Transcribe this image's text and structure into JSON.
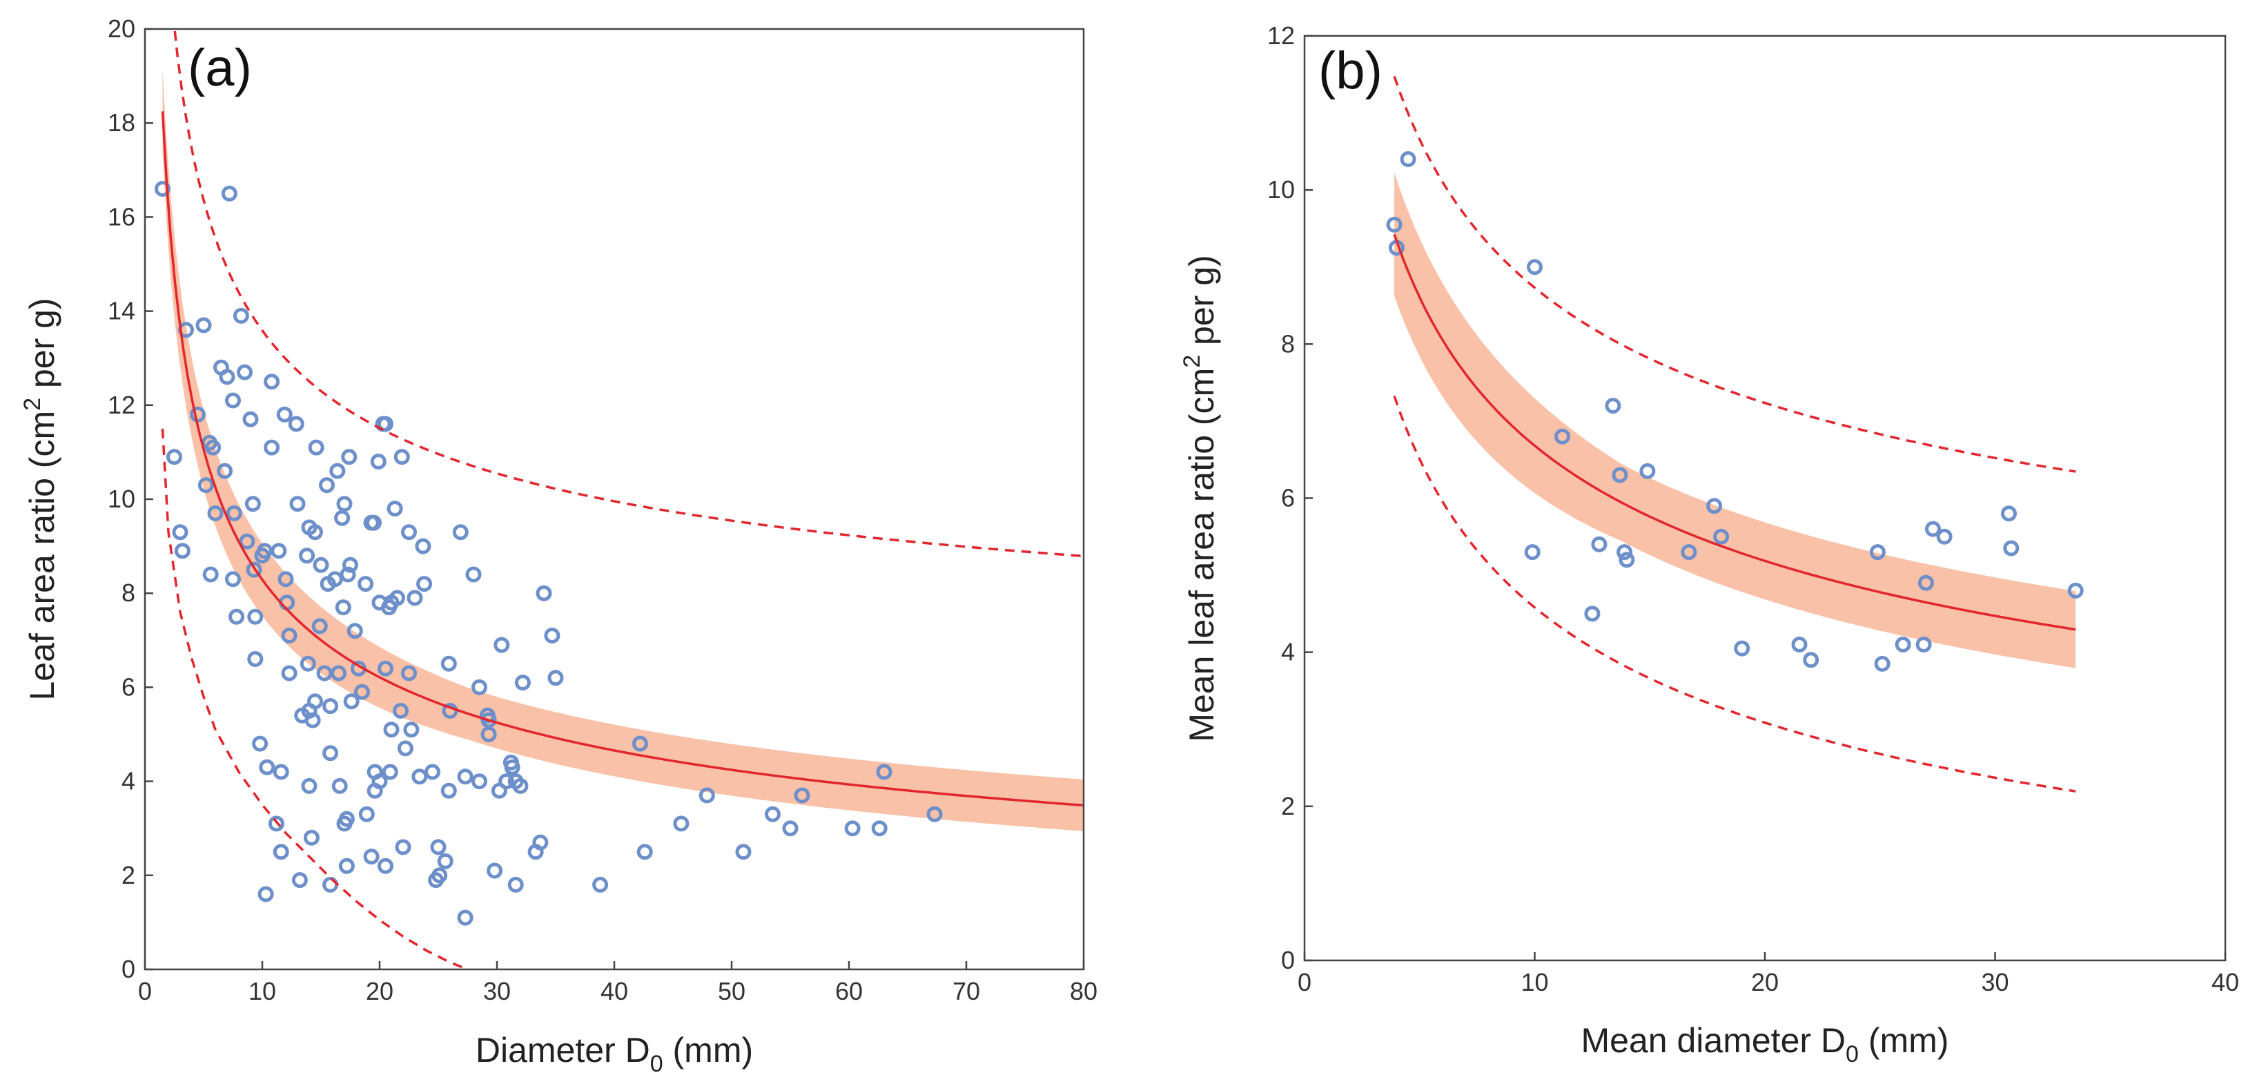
{
  "chart_data": [
    {
      "type": "scatter",
      "panel_label": "(a)",
      "xlabel": "Diameter D",
      "xlabel_sub": "0",
      "xlabel_unit": " (mm)",
      "ylabel": "Leaf area ratio (cm",
      "ylabel_sup": "2",
      "ylabel_unit": " per g)",
      "xlim": [
        0,
        80
      ],
      "ylim": [
        0,
        20
      ],
      "xticks": [
        "0",
        "10",
        "20",
        "30",
        "40",
        "50",
        "60",
        "70",
        "80"
      ],
      "yticks": [
        "0",
        "2",
        "4",
        "6",
        "8",
        "10",
        "12",
        "14",
        "16",
        "18",
        "20"
      ],
      "fit": {
        "model": "y = a * x^b",
        "a": 21.6,
        "b": -0.416,
        "x_start": 1.5,
        "ci_halfwidth": 0.55
      },
      "prediction_interval": {
        "upper": {
          "offset": 5.3,
          "x_start": 2.4,
          "x_end": 80
        },
        "lower": {
          "x": [
            1.5,
            2,
            3,
            4,
            5,
            6,
            8,
            10,
            12,
            14,
            16,
            18,
            20,
            22,
            24,
            26,
            27.5
          ],
          "y": [
            11.5,
            9.3,
            7.6,
            6.6,
            5.8,
            5.1,
            4.2,
            3.5,
            2.9,
            2.4,
            1.9,
            1.45,
            1.05,
            0.7,
            0.4,
            0.15,
            0
          ]
        }
      },
      "points": [
        [
          1.5,
          16.6
        ],
        [
          2.5,
          10.9
        ],
        [
          3,
          9.3
        ],
        [
          3.2,
          8.9
        ],
        [
          3.5,
          13.6
        ],
        [
          4.5,
          11.8
        ],
        [
          5,
          13.7
        ],
        [
          5.2,
          10.3
        ],
        [
          5.5,
          11.2
        ],
        [
          5.8,
          11.1
        ],
        [
          5.6,
          8.4
        ],
        [
          6,
          9.7
        ],
        [
          6.5,
          12.8
        ],
        [
          6.8,
          10.6
        ],
        [
          7,
          12.6
        ],
        [
          7.2,
          16.5
        ],
        [
          7.5,
          12.1
        ],
        [
          7.5,
          8.3
        ],
        [
          7.6,
          9.7
        ],
        [
          7.8,
          7.5
        ],
        [
          8.2,
          13.9
        ],
        [
          8.5,
          12.7
        ],
        [
          8.7,
          9.1
        ],
        [
          9,
          11.7
        ],
        [
          9.2,
          9.9
        ],
        [
          9.3,
          8.5
        ],
        [
          9.4,
          7.5
        ],
        [
          9.4,
          6.6
        ],
        [
          9.8,
          4.8
        ],
        [
          10,
          8.8
        ],
        [
          10.2,
          8.9
        ],
        [
          10.4,
          4.3
        ],
        [
          10.3,
          1.6
        ],
        [
          10.8,
          12.5
        ],
        [
          10.8,
          11.1
        ],
        [
          11.2,
          3.1
        ],
        [
          11.4,
          8.9
        ],
        [
          11.6,
          4.2
        ],
        [
          11.6,
          2.5
        ],
        [
          11.9,
          11.8
        ],
        [
          12,
          8.3
        ],
        [
          12.1,
          7.8
        ],
        [
          12.3,
          6.3
        ],
        [
          12.3,
          7.1
        ],
        [
          12.9,
          11.6
        ],
        [
          13,
          9.9
        ],
        [
          13.2,
          1.9
        ],
        [
          13.4,
          5.4
        ],
        [
          13.8,
          8.8
        ],
        [
          13.9,
          6.5
        ],
        [
          14,
          3.9
        ],
        [
          14,
          5.5
        ],
        [
          14,
          9.4
        ],
        [
          14.2,
          2.8
        ],
        [
          14.3,
          5.3
        ],
        [
          14.5,
          9.3
        ],
        [
          14.5,
          5.7
        ],
        [
          14.6,
          11.1
        ],
        [
          14.9,
          7.3
        ],
        [
          15,
          8.6
        ],
        [
          15.3,
          6.3
        ],
        [
          15.5,
          10.3
        ],
        [
          15.6,
          8.2
        ],
        [
          15.8,
          5.6
        ],
        [
          15.8,
          4.6
        ],
        [
          15.8,
          1.8
        ],
        [
          16.2,
          8.3
        ],
        [
          16.4,
          10.6
        ],
        [
          16.5,
          6.3
        ],
        [
          16.6,
          3.9
        ],
        [
          16.8,
          9.6
        ],
        [
          16.9,
          7.7
        ],
        [
          17,
          3.1
        ],
        [
          17,
          9.9
        ],
        [
          17.2,
          2.2
        ],
        [
          17.2,
          3.2
        ],
        [
          17.3,
          8.4
        ],
        [
          17.4,
          10.9
        ],
        [
          17.5,
          8.6
        ],
        [
          17.6,
          5.7
        ],
        [
          17.9,
          7.2
        ],
        [
          18.2,
          6.4
        ],
        [
          18.5,
          5.9
        ],
        [
          18.8,
          8.2
        ],
        [
          18.9,
          3.3
        ],
        [
          19.3,
          2.4
        ],
        [
          19.3,
          9.5
        ],
        [
          19.5,
          9.5
        ],
        [
          19.6,
          3.8
        ],
        [
          19.6,
          4.2
        ],
        [
          19.9,
          10.8
        ],
        [
          20,
          7.8
        ],
        [
          20,
          4.0
        ],
        [
          20.3,
          11.6
        ],
        [
          20.5,
          11.6
        ],
        [
          20.5,
          6.4
        ],
        [
          20.5,
          2.2
        ],
        [
          20.8,
          7.7
        ],
        [
          20.9,
          4.2
        ],
        [
          21,
          5.1
        ],
        [
          21,
          7.8
        ],
        [
          21.3,
          9.8
        ],
        [
          21.5,
          7.9
        ],
        [
          21.8,
          5.5
        ],
        [
          21.9,
          10.9
        ],
        [
          22,
          2.6
        ],
        [
          22.2,
          4.7
        ],
        [
          22.5,
          9.3
        ],
        [
          22.5,
          6.3
        ],
        [
          22.7,
          5.1
        ],
        [
          23,
          7.9
        ],
        [
          23.4,
          4.1
        ],
        [
          23.7,
          9.0
        ],
        [
          23.8,
          8.2
        ],
        [
          24.5,
          4.2
        ],
        [
          24.8,
          1.9
        ],
        [
          25,
          2.6
        ],
        [
          25.1,
          2.0
        ],
        [
          25.6,
          2.3
        ],
        [
          25.9,
          6.5
        ],
        [
          25.9,
          3.8
        ],
        [
          26,
          5.5
        ],
        [
          26.9,
          9.3
        ],
        [
          27.3,
          4.1
        ],
        [
          27.3,
          1.1
        ],
        [
          28,
          8.4
        ],
        [
          28.5,
          4.0
        ],
        [
          28.5,
          6.0
        ],
        [
          29.2,
          5.4
        ],
        [
          29.3,
          5.0
        ],
        [
          29.3,
          5.3
        ],
        [
          29.8,
          2.1
        ],
        [
          30.2,
          3.8
        ],
        [
          30.4,
          6.9
        ],
        [
          30.8,
          4.0
        ],
        [
          31.2,
          4.4
        ],
        [
          31.3,
          4.3
        ],
        [
          31.6,
          1.8
        ],
        [
          31.6,
          4.0
        ],
        [
          32,
          3.9
        ],
        [
          32.2,
          6.1
        ],
        [
          33.3,
          2.5
        ],
        [
          33.7,
          2.7
        ],
        [
          34,
          8.0
        ],
        [
          34.7,
          7.1
        ],
        [
          35,
          6.2
        ],
        [
          38.8,
          1.8
        ],
        [
          42.2,
          4.8
        ],
        [
          42.6,
          2.5
        ],
        [
          45.7,
          3.1
        ],
        [
          47.9,
          3.7
        ],
        [
          51,
          2.5
        ],
        [
          53.5,
          3.3
        ],
        [
          55,
          3.0
        ],
        [
          56,
          3.7
        ],
        [
          60.3,
          3.0
        ],
        [
          62.6,
          3.0
        ],
        [
          63,
          4.2
        ],
        [
          67.3,
          3.3
        ]
      ]
    },
    {
      "type": "scatter",
      "panel_label": "(b)",
      "xlabel": "Mean diameter D",
      "xlabel_sub": "0",
      "xlabel_unit": " (mm)",
      "ylabel": "Mean leaf area ratio (cm",
      "ylabel_sup": "2",
      "ylabel_unit": " per g)",
      "xlim": [
        0,
        40
      ],
      "ylim": [
        0,
        12
      ],
      "xticks": [
        "0",
        "10",
        "20",
        "30",
        "40"
      ],
      "yticks": [
        "0",
        "2",
        "4",
        "6",
        "8",
        "10",
        "12"
      ],
      "fit": {
        "model": "y = a * x^b",
        "a": 15.5,
        "b": -0.3655,
        "x_start": 3.9,
        "x_end": 33.5,
        "ci_halfwidth": 0.5
      },
      "prediction_interval": {
        "upper": {
          "offset": 2.05,
          "x_start": 3.9,
          "x_end": 33.5
        },
        "lower": {
          "offset": -2.1,
          "x_start": 3.9,
          "x_end": 33.5
        }
      },
      "points": [
        [
          3.9,
          9.55
        ],
        [
          4.0,
          9.25
        ],
        [
          4.5,
          10.4
        ],
        [
          9.9,
          5.3
        ],
        [
          10.0,
          9.0
        ],
        [
          11.2,
          6.8
        ],
        [
          12.5,
          4.5
        ],
        [
          12.8,
          5.4
        ],
        [
          13.4,
          7.2
        ],
        [
          13.7,
          6.3
        ],
        [
          13.9,
          5.3
        ],
        [
          14.0,
          5.2
        ],
        [
          14.9,
          6.35
        ],
        [
          16.7,
          5.3
        ],
        [
          17.8,
          5.9
        ],
        [
          18.1,
          5.5
        ],
        [
          19.0,
          4.05
        ],
        [
          21.5,
          4.1
        ],
        [
          22.0,
          3.9
        ],
        [
          24.9,
          5.3
        ],
        [
          25.1,
          3.85
        ],
        [
          26.0,
          4.1
        ],
        [
          26.9,
          4.1
        ],
        [
          27.0,
          4.9
        ],
        [
          27.3,
          5.6
        ],
        [
          27.8,
          5.5
        ],
        [
          30.6,
          5.8
        ],
        [
          30.7,
          5.35
        ],
        [
          33.5,
          4.8
        ]
      ]
    }
  ]
}
